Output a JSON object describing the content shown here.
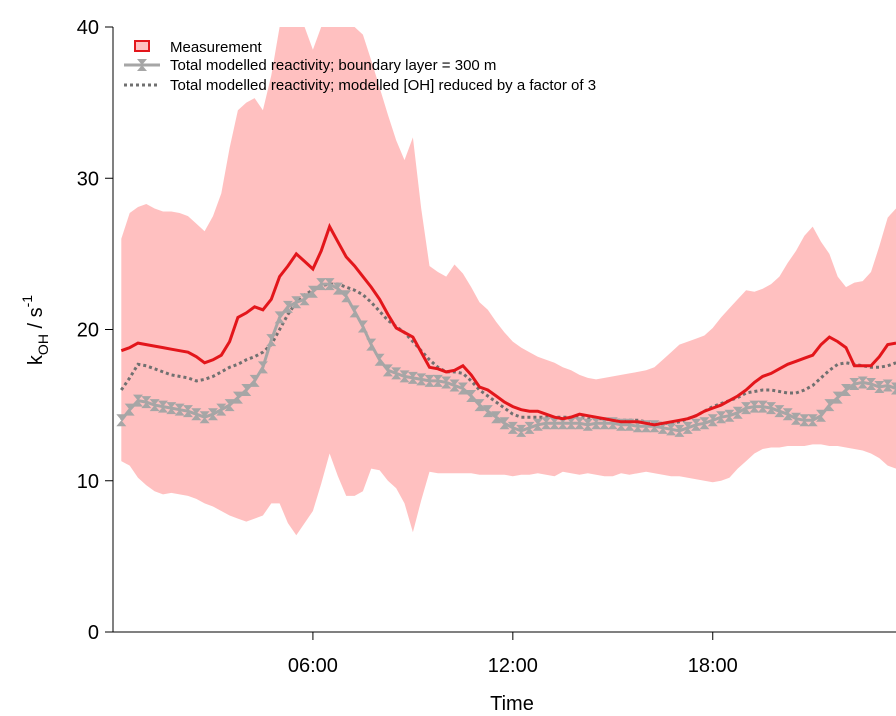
{
  "chart_data": {
    "type": "line",
    "xlabel": "Time",
    "ylabel_main": "k",
    "ylabel_sub": "OH",
    "ylabel_unit": " / s",
    "ylabel_sup": "-1",
    "xlim": [
      0,
      23.5
    ],
    "ylim": [
      0,
      40
    ],
    "x_ticks": [
      6,
      12,
      18
    ],
    "x_tick_labels": [
      "06:00",
      "12:00",
      "18:00"
    ],
    "y_ticks": [
      0,
      10,
      20,
      30,
      40
    ],
    "y_tick_labels": [
      "0",
      "10",
      "20",
      "30",
      "40"
    ],
    "legend_position": "top-left",
    "x": [
      0.25,
      0.5,
      0.75,
      1.0,
      1.25,
      1.5,
      1.75,
      2.0,
      2.25,
      2.5,
      2.75,
      3.0,
      3.25,
      3.5,
      3.75,
      4.0,
      4.25,
      4.5,
      4.75,
      5.0,
      5.25,
      5.5,
      5.75,
      6.0,
      6.25,
      6.5,
      6.75,
      7.0,
      7.25,
      7.5,
      7.75,
      8.0,
      8.25,
      8.5,
      8.75,
      9.0,
      9.25,
      9.5,
      9.75,
      10.0,
      10.25,
      10.5,
      10.75,
      11.0,
      11.25,
      11.5,
      11.75,
      12.0,
      12.25,
      12.5,
      12.75,
      13.0,
      13.25,
      13.5,
      13.75,
      14.0,
      14.25,
      14.5,
      14.75,
      15.0,
      15.25,
      15.5,
      15.75,
      16.0,
      16.25,
      16.5,
      16.75,
      17.0,
      17.25,
      17.5,
      17.75,
      18.0,
      18.25,
      18.5,
      18.75,
      19.0,
      19.25,
      19.5,
      19.75,
      20.0,
      20.25,
      20.5,
      20.75,
      21.0,
      21.25,
      21.5,
      21.75,
      22.0,
      22.25,
      22.5,
      22.75,
      23.0,
      23.25,
      23.5
    ],
    "series": [
      {
        "name": "Measurement",
        "style": "band-with-line",
        "color": "#e3161b",
        "band_color": "#ffc0c0",
        "values": [
          18.6,
          18.8,
          19.1,
          19.0,
          18.9,
          18.8,
          18.7,
          18.6,
          18.5,
          18.2,
          17.8,
          18.0,
          18.3,
          19.2,
          20.8,
          21.1,
          21.5,
          21.3,
          22.0,
          23.5,
          24.2,
          25.0,
          24.5,
          24.0,
          25.2,
          26.8,
          25.8,
          24.8,
          24.2,
          23.5,
          22.8,
          22.0,
          21.0,
          20.1,
          19.8,
          19.5,
          18.5,
          17.5,
          17.4,
          17.2,
          17.3,
          17.6,
          17.0,
          16.2,
          16.0,
          15.6,
          15.2,
          14.9,
          14.7,
          14.6,
          14.6,
          14.4,
          14.2,
          14.1,
          14.2,
          14.4,
          14.3,
          14.2,
          14.1,
          14.0,
          13.9,
          13.9,
          13.9,
          13.8,
          13.7,
          13.8,
          13.9,
          14.0,
          14.1,
          14.3,
          14.6,
          14.8,
          15.0,
          15.3,
          15.6,
          16.0,
          16.5,
          16.9,
          17.1,
          17.4,
          17.7,
          17.9,
          18.1,
          18.3,
          19.0,
          19.5,
          19.2,
          18.8,
          17.6,
          17.6,
          17.6,
          18.2,
          19.0,
          19.1
        ],
        "lower": [
          11.3,
          11.0,
          10.2,
          9.7,
          9.3,
          9.1,
          9.2,
          9.1,
          9.0,
          8.8,
          8.5,
          8.3,
          8.0,
          7.7,
          7.5,
          7.3,
          7.5,
          7.7,
          8.5,
          8.5,
          7.2,
          6.4,
          7.2,
          8.0,
          9.8,
          11.8,
          10.3,
          9.0,
          9.0,
          9.3,
          10.8,
          10.7,
          10.0,
          9.5,
          8.5,
          6.6,
          8.7,
          10.6,
          10.5,
          10.5,
          10.5,
          10.5,
          10.5,
          10.4,
          10.4,
          10.4,
          10.4,
          10.3,
          10.4,
          10.4,
          10.5,
          10.4,
          10.3,
          10.6,
          10.5,
          10.4,
          10.5,
          10.4,
          10.3,
          10.3,
          10.5,
          10.4,
          10.5,
          10.6,
          10.5,
          10.4,
          10.3,
          10.3,
          10.2,
          10.1,
          10.0,
          9.9,
          10.0,
          10.2,
          10.8,
          11.3,
          11.8,
          12.1,
          12.2,
          12.2,
          12.3,
          12.3,
          12.3,
          12.4,
          12.4,
          12.3,
          12.3,
          12.2,
          12.1,
          12.0,
          11.8,
          11.5,
          11.0,
          10.8
        ],
        "upper": [
          26.0,
          27.7,
          28.1,
          28.3,
          28.0,
          27.8,
          27.8,
          27.7,
          27.5,
          27.0,
          26.5,
          27.5,
          29.0,
          32.0,
          34.5,
          35.0,
          35.3,
          34.5,
          36.8,
          40.0,
          40.0,
          40.0,
          40.0,
          38.5,
          40.0,
          40.0,
          40.0,
          40.0,
          40.0,
          39.5,
          37.8,
          36.0,
          34.2,
          32.5,
          31.2,
          32.7,
          28.0,
          24.2,
          23.8,
          23.5,
          24.3,
          23.7,
          22.8,
          21.8,
          21.3,
          20.5,
          19.8,
          19.2,
          18.8,
          18.5,
          18.2,
          18.0,
          17.8,
          17.5,
          17.3,
          17.0,
          16.8,
          16.7,
          16.8,
          16.9,
          17.0,
          17.1,
          17.2,
          17.3,
          17.5,
          18.0,
          18.5,
          19.0,
          19.2,
          19.4,
          19.6,
          20.1,
          20.8,
          21.4,
          22.0,
          22.6,
          22.5,
          22.7,
          23.0,
          23.5,
          24.4,
          25.2,
          26.2,
          26.8,
          25.8,
          25.0,
          23.5,
          22.8,
          23.1,
          23.2,
          23.8,
          25.5,
          27.4,
          28.0
        ]
      },
      {
        "name": "Total modelled reactivity; boundary layer = 300 m",
        "style": "line-with-markers",
        "color": "#a6a6a6",
        "values": [
          14.0,
          14.7,
          15.3,
          15.2,
          15.0,
          14.9,
          14.8,
          14.7,
          14.6,
          14.4,
          14.2,
          14.4,
          14.7,
          15.0,
          15.5,
          16.0,
          16.6,
          17.5,
          19.3,
          20.8,
          21.5,
          21.8,
          22.0,
          22.5,
          23.0,
          23.0,
          22.7,
          22.2,
          21.2,
          20.2,
          19.0,
          18.0,
          17.3,
          17.1,
          16.9,
          16.8,
          16.7,
          16.6,
          16.6,
          16.5,
          16.3,
          16.1,
          15.6,
          15.0,
          14.6,
          14.2,
          13.8,
          13.5,
          13.3,
          13.5,
          13.7,
          13.8,
          13.8,
          13.8,
          13.8,
          13.8,
          13.7,
          13.8,
          13.8,
          13.8,
          13.7,
          13.7,
          13.6,
          13.6,
          13.6,
          13.5,
          13.4,
          13.3,
          13.5,
          13.7,
          13.8,
          14.0,
          14.2,
          14.3,
          14.5,
          14.8,
          14.9,
          14.9,
          14.8,
          14.6,
          14.4,
          14.1,
          14.0,
          14.0,
          14.3,
          15.0,
          15.5,
          16.0,
          16.4,
          16.5,
          16.4,
          16.2,
          16.3,
          16.1
        ]
      },
      {
        "name": "Total modelled reactivity; modelled [OH] reduced by a factor of 3",
        "style": "dotted",
        "color": "#707070",
        "values": [
          16.0,
          16.8,
          17.7,
          17.6,
          17.4,
          17.2,
          17.0,
          16.9,
          16.8,
          16.6,
          16.7,
          16.9,
          17.2,
          17.5,
          17.7,
          18.0,
          18.2,
          18.5,
          19.0,
          20.0,
          21.0,
          21.8,
          22.3,
          22.6,
          22.9,
          23.0,
          23.0,
          22.8,
          22.6,
          22.3,
          21.8,
          21.2,
          20.6,
          20.2,
          19.8,
          19.2,
          18.6,
          18.0,
          17.5,
          17.2,
          17.2,
          17.1,
          16.6,
          16.0,
          15.6,
          15.2,
          14.8,
          14.4,
          14.2,
          14.2,
          14.2,
          14.2,
          14.2,
          14.2,
          14.2,
          14.2,
          14.1,
          14.1,
          14.1,
          14.0,
          14.0,
          14.0,
          14.0,
          13.9,
          13.8,
          13.8,
          13.8,
          13.9,
          14.1,
          14.3,
          14.6,
          14.9,
          15.1,
          15.3,
          15.5,
          15.8,
          15.9,
          16.0,
          16.0,
          15.9,
          15.8,
          15.8,
          16.0,
          16.3,
          16.8,
          17.3,
          17.7,
          17.8,
          17.7,
          17.6,
          17.5,
          17.5,
          17.6,
          17.8
        ]
      }
    ]
  }
}
